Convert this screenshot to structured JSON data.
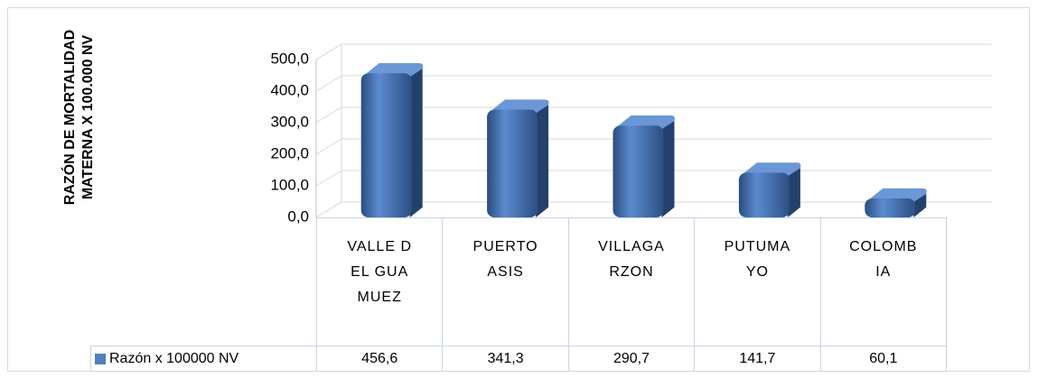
{
  "chart_data": {
    "type": "bar3d",
    "y_axis_label": "RAZÓN DE MORTALIDAD MATERNA X 100.000 NV",
    "categories": [
      "VALLE DEL GUAMUEZ",
      "PUERTO ASIS",
      "VILLAGARZON",
      "PUTUMAYO",
      "COLOMBIA"
    ],
    "series": [
      {
        "name": "Razón x 100000 NV",
        "color": "#4f81bd",
        "values": [
          456.6,
          341.3,
          290.7,
          141.7,
          60.1
        ],
        "value_labels": [
          "456,6",
          "341,3",
          "290,7",
          "141,7",
          "60,1"
        ]
      }
    ],
    "ylim": [
      0,
      500
    ],
    "yticks": [
      {
        "value": 0,
        "label": "0,0"
      },
      {
        "value": 100,
        "label": "100,0"
      },
      {
        "value": 200,
        "label": "200,0"
      },
      {
        "value": 300,
        "label": "300,0"
      },
      {
        "value": 400,
        "label": "400,0"
      },
      {
        "value": 500,
        "label": "500,0"
      }
    ],
    "grid": true,
    "legend": "data-table"
  }
}
